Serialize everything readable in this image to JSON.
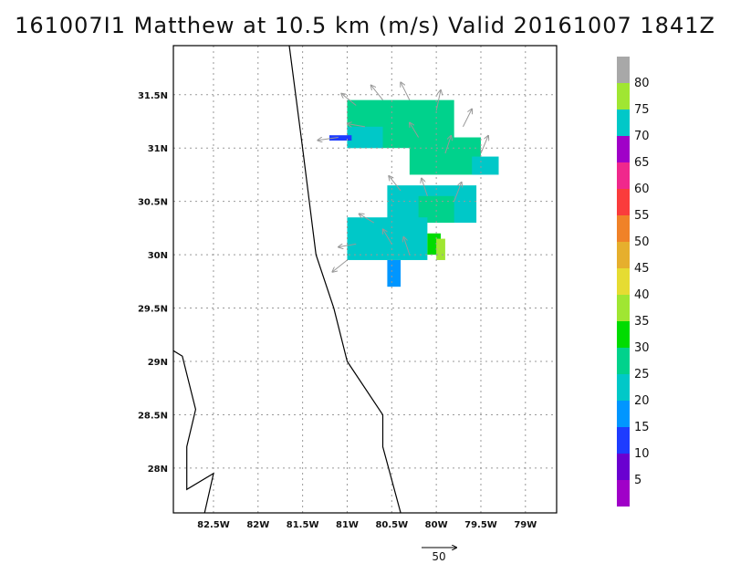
{
  "title": "161007I1 Matthew at 10.5 km (m/s) Valid 20161007 1841Z",
  "map": {
    "lon_range": [
      -82.95,
      -78.65
    ],
    "lat_range": [
      27.58,
      31.96
    ],
    "lon_ticks": [
      {
        "value": -82.5,
        "label": "82.5W"
      },
      {
        "value": -82.0,
        "label": "82W"
      },
      {
        "value": -81.5,
        "label": "81.5W"
      },
      {
        "value": -81.0,
        "label": "81W"
      },
      {
        "value": -80.5,
        "label": "80.5W"
      },
      {
        "value": -80.0,
        "label": "80W"
      },
      {
        "value": -79.5,
        "label": "79.5W"
      },
      {
        "value": -79.0,
        "label": "79W"
      }
    ],
    "lat_ticks": [
      {
        "value": 31.5,
        "label": "31.5N"
      },
      {
        "value": 31.0,
        "label": "31N"
      },
      {
        "value": 30.5,
        "label": "30.5N"
      },
      {
        "value": 30.0,
        "label": "30N"
      },
      {
        "value": 29.5,
        "label": "29.5N"
      },
      {
        "value": 29.0,
        "label": "29N"
      },
      {
        "value": 28.5,
        "label": "28.5N"
      },
      {
        "value": 28.0,
        "label": "28N"
      }
    ],
    "grid": true,
    "coastlines": [
      [
        [
          -81.65,
          31.96
        ],
        [
          -81.5,
          31.0
        ],
        [
          -81.35,
          30.0
        ],
        [
          -81.15,
          29.5
        ],
        [
          -81.0,
          29.0
        ],
        [
          -80.6,
          28.5
        ],
        [
          -80.6,
          28.2
        ],
        [
          -80.4,
          27.58
        ]
      ],
      [
        [
          -82.95,
          29.1
        ],
        [
          -82.85,
          29.05
        ],
        [
          -82.7,
          28.55
        ],
        [
          -82.8,
          28.2
        ],
        [
          -82.8,
          27.8
        ],
        [
          -82.5,
          27.95
        ],
        [
          -82.6,
          27.58
        ]
      ]
    ]
  },
  "colorbar": {
    "labels": [
      "5",
      "10",
      "15",
      "20",
      "25",
      "30",
      "35",
      "40",
      "45",
      "50",
      "55",
      "60",
      "65",
      "70",
      "75",
      "80"
    ],
    "colors": [
      "#a000c8",
      "#6a00d0",
      "#1e3cff",
      "#0096ff",
      "#00c8c8",
      "#00d28c",
      "#00dc00",
      "#a0e632",
      "#e6dc32",
      "#e6af2d",
      "#f08228",
      "#fa3c3c",
      "#f0288c",
      "#a000c8",
      "#00c8c8",
      "#a0e632",
      "#a8a8a8"
    ]
  },
  "wind_field": {
    "cells": [
      {
        "lon0": -81.0,
        "lon1": -79.8,
        "lat0": 31.0,
        "lat1": 31.45,
        "value": 25
      },
      {
        "lon0": -80.3,
        "lon1": -79.5,
        "lat0": 30.75,
        "lat1": 31.1,
        "value": 25
      },
      {
        "lon0": -79.6,
        "lon1": -79.3,
        "lat0": 30.75,
        "lat1": 30.92,
        "value": 22
      },
      {
        "lon0": -81.0,
        "lon1": -80.6,
        "lat0": 31.0,
        "lat1": 31.2,
        "value": 20
      },
      {
        "lon0": -81.2,
        "lon1": -80.95,
        "lat0": 31.07,
        "lat1": 31.12,
        "value": 14
      },
      {
        "lon0": -80.55,
        "lon1": -79.55,
        "lat0": 30.3,
        "lat1": 30.65,
        "value": 23
      },
      {
        "lon0": -80.2,
        "lon1": -79.8,
        "lat0": 30.3,
        "lat1": 30.55,
        "value": 25
      },
      {
        "lon0": -81.0,
        "lon1": -80.1,
        "lat0": 29.95,
        "lat1": 30.35,
        "value": 24
      },
      {
        "lon0": -80.1,
        "lon1": -79.95,
        "lat0": 30.0,
        "lat1": 30.2,
        "value": 33
      },
      {
        "lon0": -80.0,
        "lon1": -79.9,
        "lat0": 29.95,
        "lat1": 30.15,
        "value": 38
      },
      {
        "lon0": -80.55,
        "lon1": -80.4,
        "lat0": 29.7,
        "lat1": 29.95,
        "value": 16
      }
    ],
    "vectors": [
      {
        "lon": -80.9,
        "lat": 31.4,
        "u": -10,
        "v": 8
      },
      {
        "lon": -80.6,
        "lat": 31.45,
        "u": -8,
        "v": 10
      },
      {
        "lon": -80.3,
        "lat": 31.45,
        "u": -6,
        "v": 12
      },
      {
        "lon": -80.0,
        "lat": 31.35,
        "u": 3,
        "v": 14
      },
      {
        "lon": -79.7,
        "lat": 31.2,
        "u": 6,
        "v": 12
      },
      {
        "lon": -79.5,
        "lat": 30.95,
        "u": 5,
        "v": 12
      },
      {
        "lon": -81.1,
        "lat": 31.1,
        "u": -14,
        "v": -2
      },
      {
        "lon": -80.8,
        "lat": 31.2,
        "u": -12,
        "v": 2
      },
      {
        "lon": -80.2,
        "lat": 31.1,
        "u": -6,
        "v": 10
      },
      {
        "lon": -79.9,
        "lat": 30.95,
        "u": 4,
        "v": 12
      },
      {
        "lon": -80.4,
        "lat": 30.6,
        "u": -8,
        "v": 10
      },
      {
        "lon": -80.1,
        "lat": 30.55,
        "u": -4,
        "v": 12
      },
      {
        "lon": -79.8,
        "lat": 30.5,
        "u": 5,
        "v": 13
      },
      {
        "lon": -80.7,
        "lat": 30.3,
        "u": -10,
        "v": 6
      },
      {
        "lon": -80.9,
        "lat": 30.1,
        "u": -12,
        "v": -2
      },
      {
        "lon": -81.0,
        "lat": 29.95,
        "u": -10,
        "v": -8
      },
      {
        "lon": -80.5,
        "lat": 30.1,
        "u": -6,
        "v": 10
      },
      {
        "lon": -80.3,
        "lat": 30.0,
        "u": -4,
        "v": 12
      }
    ]
  },
  "reference_vector": {
    "label": "50"
  }
}
